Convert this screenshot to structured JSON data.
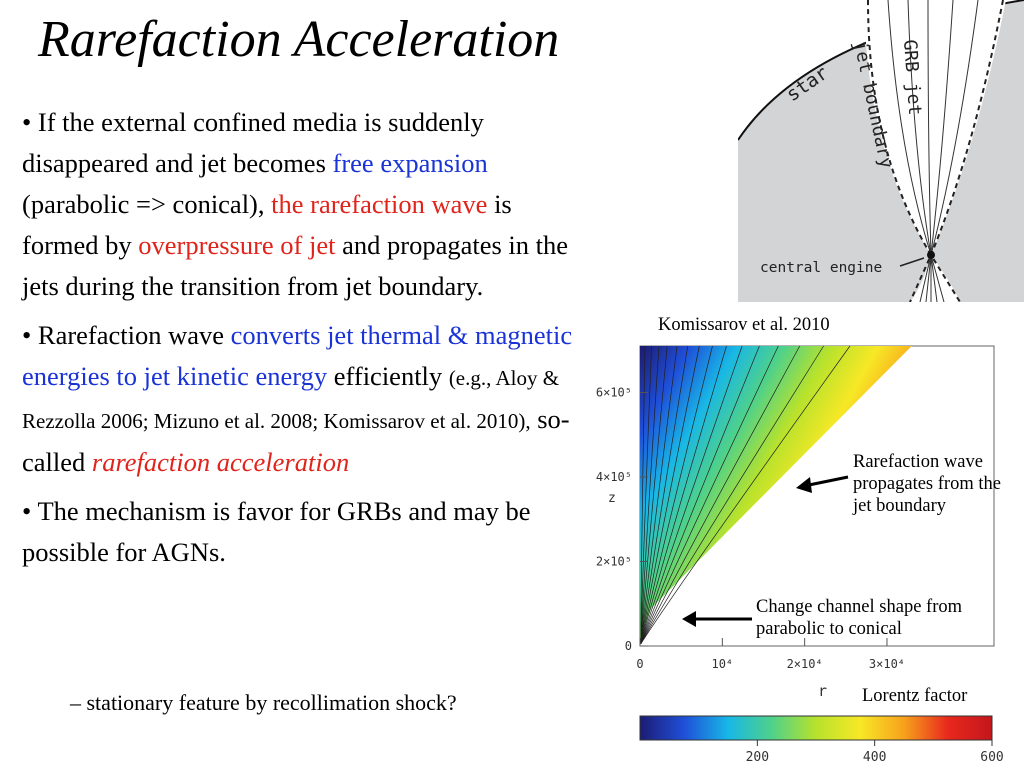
{
  "slide": {
    "title": "Rarefaction Acceleration",
    "bullets": [
      {
        "b": "• ",
        "t1": "If the external confined media is suddenly disappeared and jet becomes ",
        "t2": "free expansion",
        "t3": " (parabolic => conical), ",
        "t4": "the rarefaction wave",
        "t5": " is formed by ",
        "t6": "overpressure of jet",
        "t7": " and propagates in the jets during the transition from jet boundary."
      },
      {
        "b": "• ",
        "t1": "Rarefaction wave ",
        "t2": "converts jet thermal & magnetic energies to jet kinetic energy",
        "t3": " efficiently ",
        "t4": "(e.g., Aloy & Rezzolla 2006; Mizuno et al. 2008; Komissarov et al. 2010),",
        "t5": " so-called ",
        "t6": "rarefaction acceleration"
      },
      {
        "b": "• ",
        "t1": "The mechanism is favor for GRBs and may be possible for AGNs."
      }
    ],
    "sub_bullet": "– stationary feature by recollimation shock?"
  },
  "diagram": {
    "labels": {
      "star": "star",
      "jet_boundary": "jet boundary",
      "grb_jet": "GRB jet",
      "central_engine": "central engine"
    }
  },
  "figure": {
    "citation": "Komissarov et al. 2010",
    "caption_rarefaction": "Rarefaction wave propagates from the jet boundary",
    "caption_channel": "Change channel shape from parabolic to conical",
    "colorbar_title": "Lorentz factor"
  },
  "chart_data": {
    "type": "heatmap",
    "xlabel": "r",
    "ylabel": "z",
    "x_ticks": [
      "0",
      "10^4",
      "2×10^4",
      "3×10^4"
    ],
    "y_ticks": [
      "0",
      "2×10^5",
      "4×10^5",
      "6×10^5"
    ],
    "colorbar_ticks": [
      "200",
      "400",
      "600"
    ],
    "colorbar_range": [
      0,
      600
    ],
    "colors": [
      "#1c1c74",
      "#1f4fd8",
      "#18b7e6",
      "#4fd18a",
      "#b7e22c",
      "#f7e826",
      "#f7a11c",
      "#e8281d",
      "#c4161b"
    ]
  }
}
